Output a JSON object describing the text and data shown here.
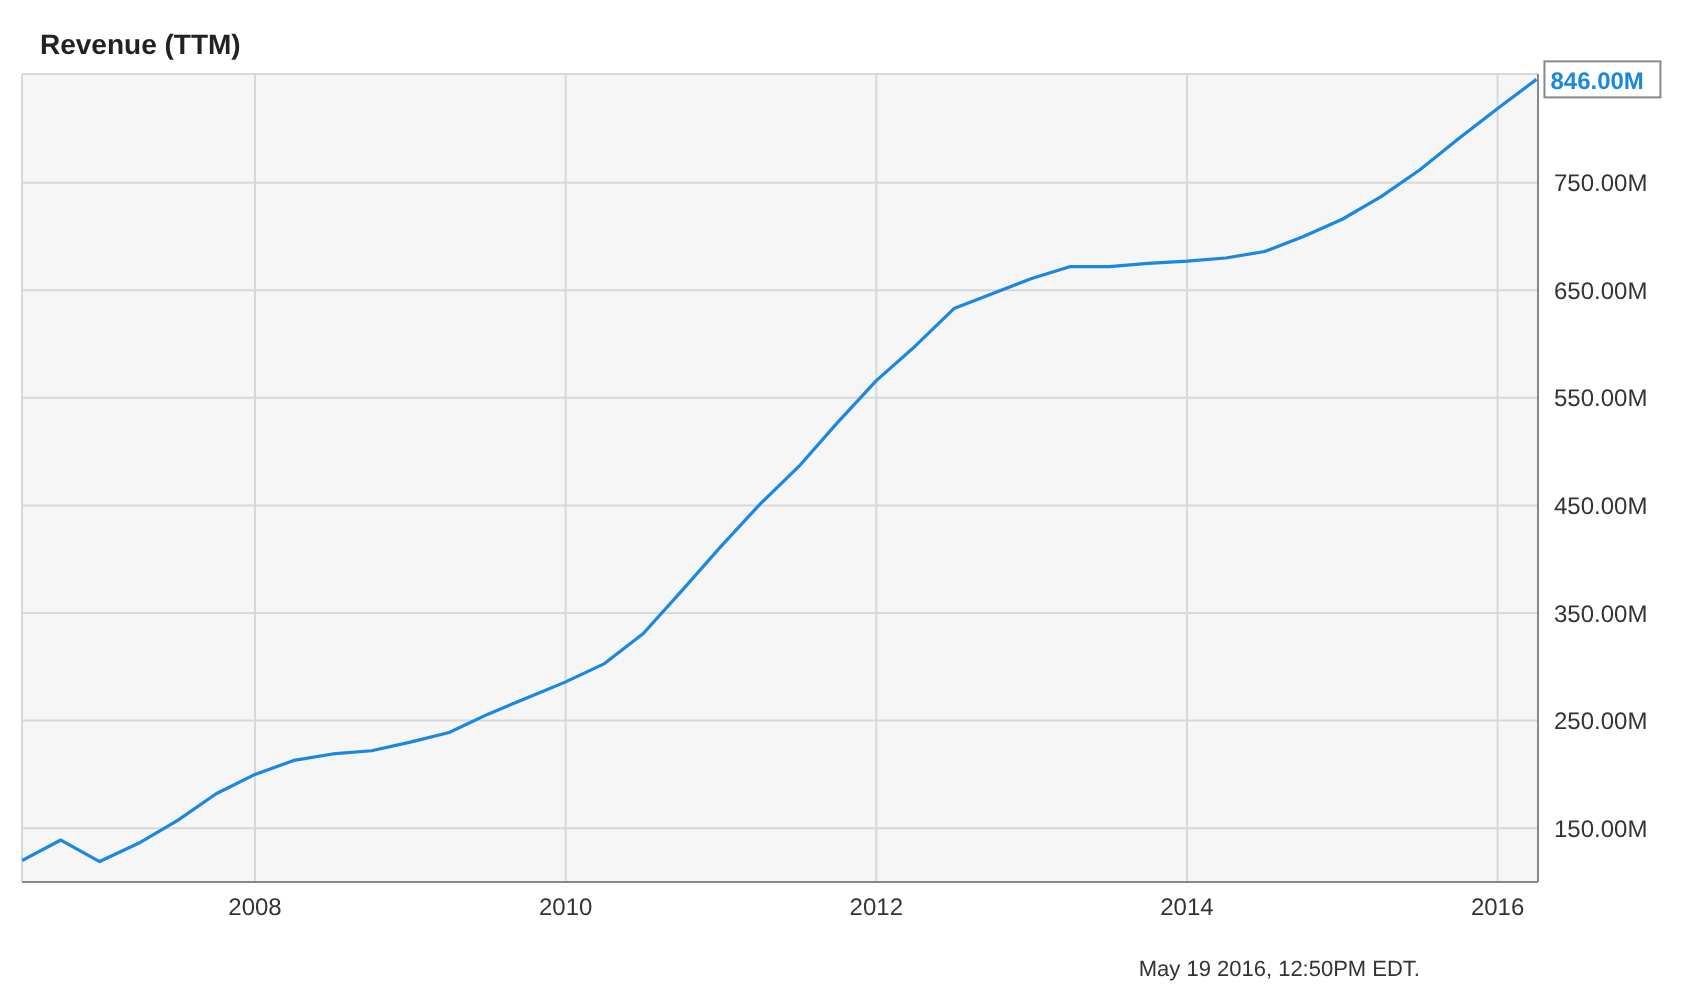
{
  "chart_data": {
    "type": "line",
    "title": "Revenue (TTM)",
    "x": [
      2006.5,
      2006.75,
      2007.0,
      2007.25,
      2007.5,
      2007.75,
      2008.0,
      2008.25,
      2008.5,
      2008.75,
      2009.0,
      2009.25,
      2009.5,
      2009.75,
      2010.0,
      2010.25,
      2010.5,
      2010.75,
      2011.0,
      2011.25,
      2011.5,
      2011.75,
      2012.0,
      2012.25,
      2012.5,
      2012.75,
      2013.0,
      2013.25,
      2013.5,
      2013.75,
      2014.0,
      2014.25,
      2014.5,
      2014.75,
      2015.0,
      2015.25,
      2015.5,
      2015.75,
      2016.0,
      2016.25
    ],
    "series": [
      {
        "color": "#1a87e0",
        "values": [
          120,
          139,
          119,
          136,
          157,
          182,
          200,
          213,
          219,
          222,
          230,
          239,
          256,
          271,
          286,
          303,
          331,
          371,
          412,
          451,
          486,
          527,
          566,
          598,
          633,
          647,
          661,
          672,
          672,
          675,
          677,
          680,
          686,
          700,
          716,
          737,
          762,
          791,
          819,
          846
        ]
      }
    ],
    "xlim": [
      2006.5,
      2016.26
    ],
    "xticks": [
      2008,
      2010,
      2012,
      2014,
      2016
    ],
    "ylim": [
      100,
      851
    ],
    "yticks": [
      {
        "value": 150,
        "label": "150.00M"
      },
      {
        "value": 250,
        "label": "250.00M"
      },
      {
        "value": 350,
        "label": "350.00M"
      },
      {
        "value": 450,
        "label": "450.00M"
      },
      {
        "value": 550,
        "label": "550.00M"
      },
      {
        "value": 650,
        "label": "650.00M"
      },
      {
        "value": 750,
        "label": "750.00M"
      }
    ],
    "grid": true,
    "annotations": [
      {
        "text": "846.00M",
        "x": 2016.25,
        "y": 846
      },
      "May 19 2016, 12:50PM EDT."
    ]
  }
}
